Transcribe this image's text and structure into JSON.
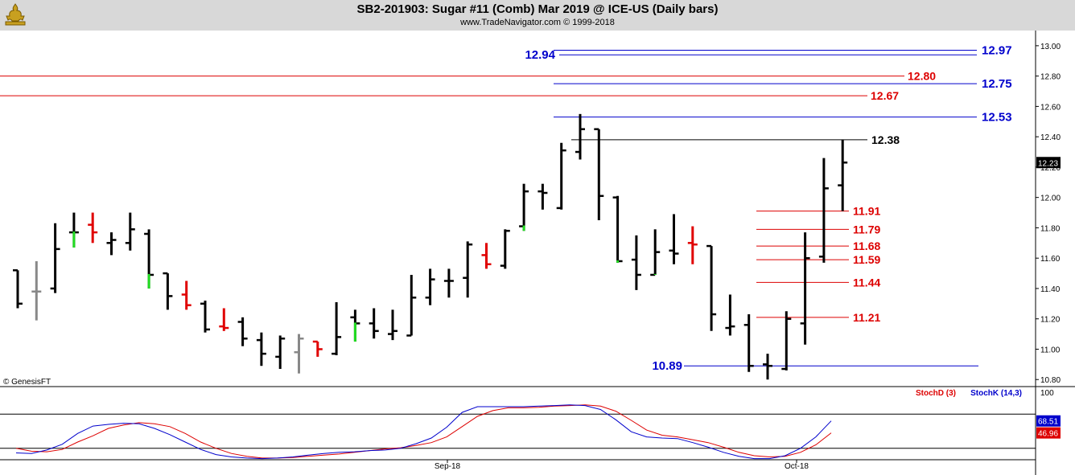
{
  "header": {
    "title": "SB2-201903:  Sugar #11 (Comb) Mar 2019 @ ICE-US  (Daily bars)",
    "subtitle": "www.TradeNavigator.com © 1999-2018"
  },
  "colors": {
    "bull": "#000000",
    "bear": "#e00000",
    "green": "#22dd22",
    "gray": "#888888",
    "blue_level": "#0000cc",
    "red_level": "#dd0000",
    "stoch_d": "#dd0000",
    "stoch_k": "#0000cc"
  },
  "icon": "trade-navigator-logo-icon",
  "chart_data": [
    {
      "type": "ohlc",
      "title": "SB2-201903:  Sugar #11 (Comb) Mar 2019 @ ICE-US  (Daily bars)",
      "ylim": [
        10.78,
        13.1
      ],
      "y_ticks": [
        "10.80",
        "11.00",
        "11.20",
        "11.40",
        "11.60",
        "11.80",
        "12.00",
        "12.20",
        "12.40",
        "12.60",
        "12.80",
        "13.00"
      ],
      "x_ticks": [
        "Sep-18",
        "Oct-18"
      ],
      "last_price": "12.23",
      "bars": [
        {
          "o": 11.52,
          "h": 11.52,
          "l": 11.27,
          "c": 11.3,
          "col": "black"
        },
        {
          "o": 11.38,
          "h": 11.58,
          "l": 11.19,
          "c": 11.38,
          "col": "gray"
        },
        {
          "o": 11.4,
          "h": 11.83,
          "l": 11.37,
          "c": 11.66,
          "col": "black"
        },
        {
          "o": 11.77,
          "h": 11.9,
          "l": 11.67,
          "c": 11.77,
          "col": "green"
        },
        {
          "o": 11.82,
          "h": 11.9,
          "l": 11.7,
          "c": 11.77,
          "col": "red"
        },
        {
          "o": 11.7,
          "h": 11.77,
          "l": 11.62,
          "c": 11.72,
          "col": "black"
        },
        {
          "o": 11.7,
          "h": 11.9,
          "l": 11.65,
          "c": 11.79,
          "col": "black"
        },
        {
          "o": 11.76,
          "h": 11.79,
          "l": 11.4,
          "c": 11.49,
          "col": "green"
        },
        {
          "o": 11.5,
          "h": 11.5,
          "l": 11.26,
          "c": 11.35,
          "col": "black"
        },
        {
          "o": 11.36,
          "h": 11.45,
          "l": 11.26,
          "c": 11.29,
          "col": "red"
        },
        {
          "o": 11.3,
          "h": 11.32,
          "l": 11.11,
          "c": 11.13,
          "col": "black"
        },
        {
          "o": 11.15,
          "h": 11.27,
          "l": 11.12,
          "c": 11.14,
          "col": "red"
        },
        {
          "o": 11.18,
          "h": 11.21,
          "l": 11.02,
          "c": 11.07,
          "col": "black"
        },
        {
          "o": 11.06,
          "h": 11.11,
          "l": 10.89,
          "c": 10.97,
          "col": "black"
        },
        {
          "o": 10.95,
          "h": 11.09,
          "l": 10.87,
          "c": 11.07,
          "col": "black"
        },
        {
          "o": 10.98,
          "h": 11.1,
          "l": 10.84,
          "c": 11.07,
          "col": "gray"
        },
        {
          "o": 11.05,
          "h": 11.05,
          "l": 10.95,
          "c": 11.0,
          "col": "red"
        },
        {
          "o": 10.97,
          "h": 11.31,
          "l": 10.96,
          "c": 11.08,
          "col": "black"
        },
        {
          "o": 11.21,
          "h": 11.26,
          "l": 11.05,
          "c": 11.17,
          "col": "green"
        },
        {
          "o": 11.17,
          "h": 11.27,
          "l": 11.07,
          "c": 11.12,
          "col": "black"
        },
        {
          "o": 11.1,
          "h": 11.26,
          "l": 11.06,
          "c": 11.12,
          "col": "black"
        },
        {
          "o": 11.09,
          "h": 11.49,
          "l": 11.09,
          "c": 11.34,
          "col": "black"
        },
        {
          "o": 11.34,
          "h": 11.53,
          "l": 11.29,
          "c": 11.46,
          "col": "black"
        },
        {
          "o": 11.45,
          "h": 11.53,
          "l": 11.34,
          "c": 11.45,
          "col": "black"
        },
        {
          "o": 11.47,
          "h": 11.71,
          "l": 11.34,
          "c": 11.69,
          "col": "black"
        },
        {
          "o": 11.62,
          "h": 11.7,
          "l": 11.53,
          "c": 11.56,
          "col": "red"
        },
        {
          "o": 11.55,
          "h": 11.79,
          "l": 11.53,
          "c": 11.78,
          "col": "black"
        },
        {
          "o": 11.81,
          "h": 12.09,
          "l": 11.78,
          "c": 12.04,
          "col": "green"
        },
        {
          "o": 12.04,
          "h": 12.09,
          "l": 11.92,
          "c": 12.03,
          "col": "black"
        },
        {
          "o": 11.93,
          "h": 12.36,
          "l": 11.92,
          "c": 12.31,
          "col": "black"
        },
        {
          "o": 12.3,
          "h": 12.55,
          "l": 12.25,
          "c": 12.45,
          "col": "black"
        },
        {
          "o": 12.45,
          "h": 12.45,
          "l": 11.85,
          "c": 12.01,
          "col": "black"
        },
        {
          "o": 12.0,
          "h": 12.01,
          "l": 11.57,
          "c": 11.58,
          "col": "green"
        },
        {
          "o": 11.59,
          "h": 11.75,
          "l": 11.39,
          "c": 11.49,
          "col": "black"
        },
        {
          "o": 11.49,
          "h": 11.79,
          "l": 11.49,
          "c": 11.64,
          "col": "green"
        },
        {
          "o": 11.65,
          "h": 11.89,
          "l": 11.56,
          "c": 11.63,
          "col": "black"
        },
        {
          "o": 11.7,
          "h": 11.81,
          "l": 11.56,
          "c": 11.69,
          "col": "red"
        },
        {
          "o": 11.68,
          "h": 11.68,
          "l": 11.12,
          "c": 11.23,
          "col": "black"
        },
        {
          "o": 11.14,
          "h": 11.36,
          "l": 11.09,
          "c": 11.15,
          "col": "black"
        },
        {
          "o": 11.16,
          "h": 11.23,
          "l": 10.85,
          "c": 10.89,
          "col": "black"
        },
        {
          "o": 10.9,
          "h": 10.97,
          "l": 10.8,
          "c": 10.89,
          "col": "black"
        },
        {
          "o": 10.87,
          "h": 11.25,
          "l": 10.86,
          "c": 11.2,
          "col": "black"
        },
        {
          "o": 11.17,
          "h": 11.77,
          "l": 11.03,
          "c": 11.6,
          "col": "black"
        },
        {
          "o": 11.61,
          "h": 12.26,
          "l": 11.57,
          "c": 12.06,
          "col": "black"
        },
        {
          "o": 12.08,
          "h": 12.38,
          "l": 11.91,
          "c": 12.23,
          "col": "black"
        }
      ],
      "levels_blue": [
        "12.97",
        "12.94",
        "12.75",
        "12.53",
        "10.89"
      ],
      "levels_red": [
        "12.80",
        "12.67",
        "11.91",
        "11.79",
        "11.68",
        "11.59",
        "11.44",
        "11.21"
      ],
      "level_black": "12.38",
      "level_values": {
        "12.97": 12.97,
        "12.94": 12.94,
        "12.75": 12.75,
        "12.53": 12.53,
        "10.89": 10.89,
        "12.80": 12.8,
        "12.67": 12.67,
        "11.91": 11.91,
        "11.79": 11.79,
        "11.68": 11.68,
        "11.59": 11.59,
        "11.44": 11.44,
        "11.21": 11.21,
        "12.38": 12.38
      },
      "watermark": "© GenesisFT"
    },
    {
      "type": "line",
      "ylim": [
        0,
        100
      ],
      "y_ticks": [
        "100"
      ],
      "series": [
        {
          "name": "StochD (3)",
          "last_label": "46.96",
          "color": "#dd0000",
          "values": [
            20,
            15,
            14,
            18,
            31,
            42,
            55,
            61,
            65,
            63,
            58,
            46,
            31,
            20,
            11,
            6,
            3,
            3,
            4,
            6,
            8,
            10,
            13,
            16,
            19,
            21,
            25,
            30,
            40,
            58,
            76,
            86,
            91,
            91,
            92,
            94,
            95,
            96,
            94,
            85,
            69,
            52,
            43,
            40,
            35,
            30,
            22,
            13,
            7,
            5,
            6,
            13,
            26,
            47
          ]
        },
        {
          "name": "StochK (14,3)",
          "last_label": "68.51",
          "color": "#0000cc",
          "values": [
            12,
            11,
            17,
            27,
            46,
            59,
            62,
            64,
            63,
            55,
            44,
            31,
            18,
            9,
            5,
            3,
            2,
            3,
            5,
            8,
            11,
            13,
            14,
            16,
            17,
            20,
            28,
            38,
            57,
            83,
            93,
            93,
            93,
            93,
            94,
            95,
            96,
            95,
            88,
            70,
            49,
            40,
            38,
            37,
            30,
            22,
            13,
            6,
            2,
            2,
            7,
            20,
            40,
            68
          ]
        }
      ]
    }
  ]
}
